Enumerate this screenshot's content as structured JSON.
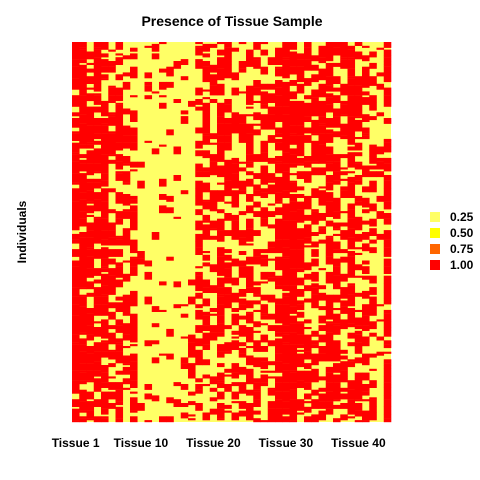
{
  "chart_data": {
    "type": "heatmap",
    "title": "Presence of Tissue Sample",
    "xlabel": "",
    "ylabel": "Individuals",
    "x_tick_labels": [
      {
        "tissue_index": 1,
        "label": "Tissue 1"
      },
      {
        "tissue_index": 10,
        "label": "Tissue 10"
      },
      {
        "tissue_index": 20,
        "label": "Tissue 20"
      },
      {
        "tissue_index": 30,
        "label": "Tissue 30"
      },
      {
        "tissue_index": 40,
        "label": "Tissue 40"
      }
    ],
    "num_tissues": 44,
    "num_individuals": 200,
    "legend": [
      {
        "label": "0.25",
        "color": "#FFFF66"
      },
      {
        "label": "0.50",
        "color": "#FFFF00"
      },
      {
        "label": "0.75",
        "color": "#FF6600"
      },
      {
        "label": "1.00",
        "color": "#FF0000"
      }
    ],
    "legend_position": "right",
    "tissue_presence_fraction": [
      0.8,
      0.8,
      0.78,
      0.78,
      0.75,
      0.55,
      0.6,
      0.45,
      0.6,
      0.1,
      0.1,
      0.1,
      0.1,
      0.12,
      0.1,
      0.12,
      0.15,
      0.45,
      0.55,
      0.3,
      0.7,
      0.45,
      0.5,
      0.4,
      0.55,
      0.5,
      0.5,
      0.4,
      0.75,
      0.95,
      0.85,
      0.65,
      0.6,
      0.6,
      0.45,
      0.7,
      0.6,
      0.5,
      0.75,
      0.55,
      0.5,
      0.45,
      0.2,
      0.85
    ]
  }
}
